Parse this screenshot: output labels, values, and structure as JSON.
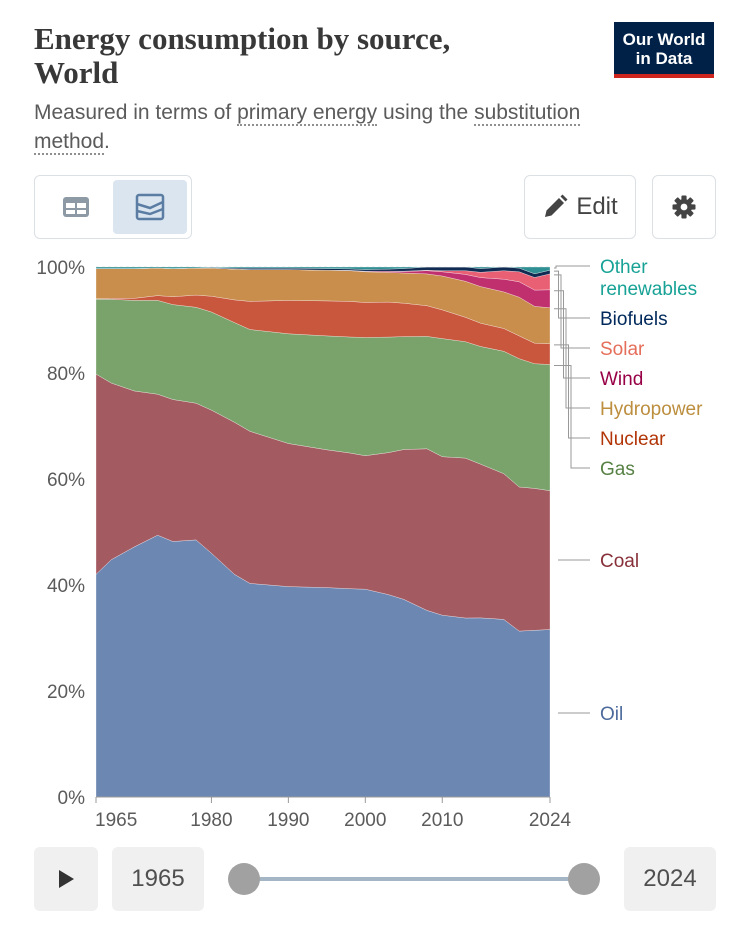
{
  "header": {
    "title_line1": "Energy consumption by source,",
    "title_line2": "World",
    "logo_line1": "Our World",
    "logo_line2": "in Data",
    "subtitle_pre": "Measured in terms of ",
    "subtitle_link1": "primary energy",
    "subtitle_mid": " using the ",
    "subtitle_link2a": "substitution",
    "subtitle_link2b": "method",
    "subtitle_post": "."
  },
  "toolbar": {
    "table_icon": "table-icon",
    "chart_icon": "stacked-area-chart-icon",
    "edit_label": "Edit",
    "edit_icon": "pencil-icon",
    "settings_icon": "gear-icon"
  },
  "timeline": {
    "start_label": "1965",
    "end_label": "2024",
    "play_icon": "play-icon"
  },
  "chart_data": {
    "type": "area",
    "stacked": "percent",
    "title": "Energy consumption by source, World",
    "ylabel": "",
    "xlabel": "",
    "ylim": [
      0,
      100
    ],
    "yticks": [
      0,
      20,
      40,
      60,
      80,
      100
    ],
    "ytick_labels": [
      "0%",
      "20%",
      "40%",
      "60%",
      "80%",
      "100%"
    ],
    "xticks": [
      1965,
      1980,
      1990,
      2000,
      2010,
      2024
    ],
    "xtick_labels": [
      "1965",
      "1980",
      "1990",
      "2000",
      "2010",
      "2024"
    ],
    "x": [
      1965,
      1967,
      1970,
      1973,
      1975,
      1978,
      1980,
      1983,
      1985,
      1990,
      1995,
      1998,
      2000,
      2003,
      2005,
      2008,
      2010,
      2013,
      2015,
      2018,
      2020,
      2022,
      2024
    ],
    "series": [
      {
        "name": "Oil",
        "label": "Oil",
        "color": "#6d87b3",
        "label_color": "#4c6a9c",
        "values": [
          42,
          44.8,
          47.2,
          49.4,
          48.2,
          48.5,
          46,
          42,
          40.3,
          39.7,
          39.5,
          39.3,
          39.2,
          38.2,
          37.3,
          35.2,
          34.3,
          33.8,
          33.8,
          33.5,
          31.3,
          31.7,
          31.6
        ]
      },
      {
        "name": "Coal",
        "label": "Coal",
        "color": "#a45a61",
        "label_color": "#883039",
        "values": [
          37.8,
          33.3,
          29.4,
          26.6,
          26.8,
          25.8,
          27,
          28.7,
          28.7,
          27,
          26,
          25.6,
          25.2,
          26.8,
          28.3,
          30.5,
          29.9,
          30.2,
          29,
          27.5,
          27.2,
          27,
          26.2
        ]
      },
      {
        "name": "Gas",
        "label": "Gas",
        "color": "#7aa36b",
        "label_color": "#578145",
        "values": [
          14.1,
          15.8,
          17.1,
          17.7,
          17.9,
          18.1,
          18.5,
          18.8,
          19.2,
          20.7,
          21.5,
          21.9,
          22.3,
          21.8,
          21.3,
          21.2,
          22.3,
          22,
          22.2,
          23.1,
          24.2,
          23.7,
          23.8
        ]
      },
      {
        "name": "Nuclear",
        "label": "Nuclear",
        "color": "#c9573e",
        "label_color": "#b13507",
        "values": [
          0.1,
          0.2,
          0.4,
          0.9,
          1.5,
          2.3,
          3,
          4.3,
          5.3,
          6.3,
          6.6,
          6.7,
          6.6,
          6.6,
          6.3,
          5.8,
          5.4,
          4.6,
          4.4,
          4.3,
          4.3,
          3.9,
          3.9
        ]
      },
      {
        "name": "Hydropower",
        "label": "Hydropower",
        "color": "#c98d4c",
        "label_color": "#bc8e3e",
        "values": [
          5.7,
          5.6,
          5.6,
          5.2,
          5.3,
          5.1,
          5.3,
          5.8,
          6,
          5.8,
          5.8,
          5.8,
          5.8,
          5.6,
          5.7,
          6,
          6.4,
          6.8,
          6.9,
          6.9,
          7.3,
          7,
          6.8
        ]
      },
      {
        "name": "Wind",
        "label": "Wind",
        "color": "#c0306f",
        "label_color": "#970046",
        "values": [
          0,
          0,
          0,
          0,
          0,
          0,
          0,
          0,
          0,
          0,
          0,
          0.05,
          0.1,
          0.2,
          0.3,
          0.6,
          0.8,
          1.3,
          1.7,
          2.4,
          2.9,
          3.1,
          3.4
        ]
      },
      {
        "name": "Solar",
        "label": "Solar",
        "color": "#e96074",
        "label_color": "#e56e5a",
        "values": [
          0,
          0,
          0,
          0,
          0,
          0,
          0,
          0,
          0,
          0,
          0,
          0,
          0,
          0.02,
          0.04,
          0.1,
          0.2,
          0.7,
          1,
          1.6,
          1.9,
          2.4,
          3
        ]
      },
      {
        "name": "Biofuels",
        "label": "Biofuels",
        "color": "#112b52",
        "label_color": "#00295b",
        "values": [
          0,
          0,
          0,
          0,
          0,
          0,
          0.1,
          0.2,
          0.3,
          0.3,
          0.3,
          0.3,
          0.3,
          0.4,
          0.5,
          0.6,
          0.7,
          0.7,
          0.7,
          0.7,
          0.7,
          0.7,
          0.7
        ]
      },
      {
        "name": "Other renewables",
        "label": "Other renewables",
        "color": "#2f8f93",
        "label_color": "#18a296",
        "values": [
          0.3,
          0.3,
          0.3,
          0.2,
          0.3,
          0.2,
          0.1,
          0.2,
          0.2,
          0.2,
          0.3,
          0.35,
          0.5,
          0.4,
          0.3,
          0,
          0,
          0,
          0.3,
          0,
          0.2,
          1.3,
          0.6
        ]
      }
    ]
  }
}
